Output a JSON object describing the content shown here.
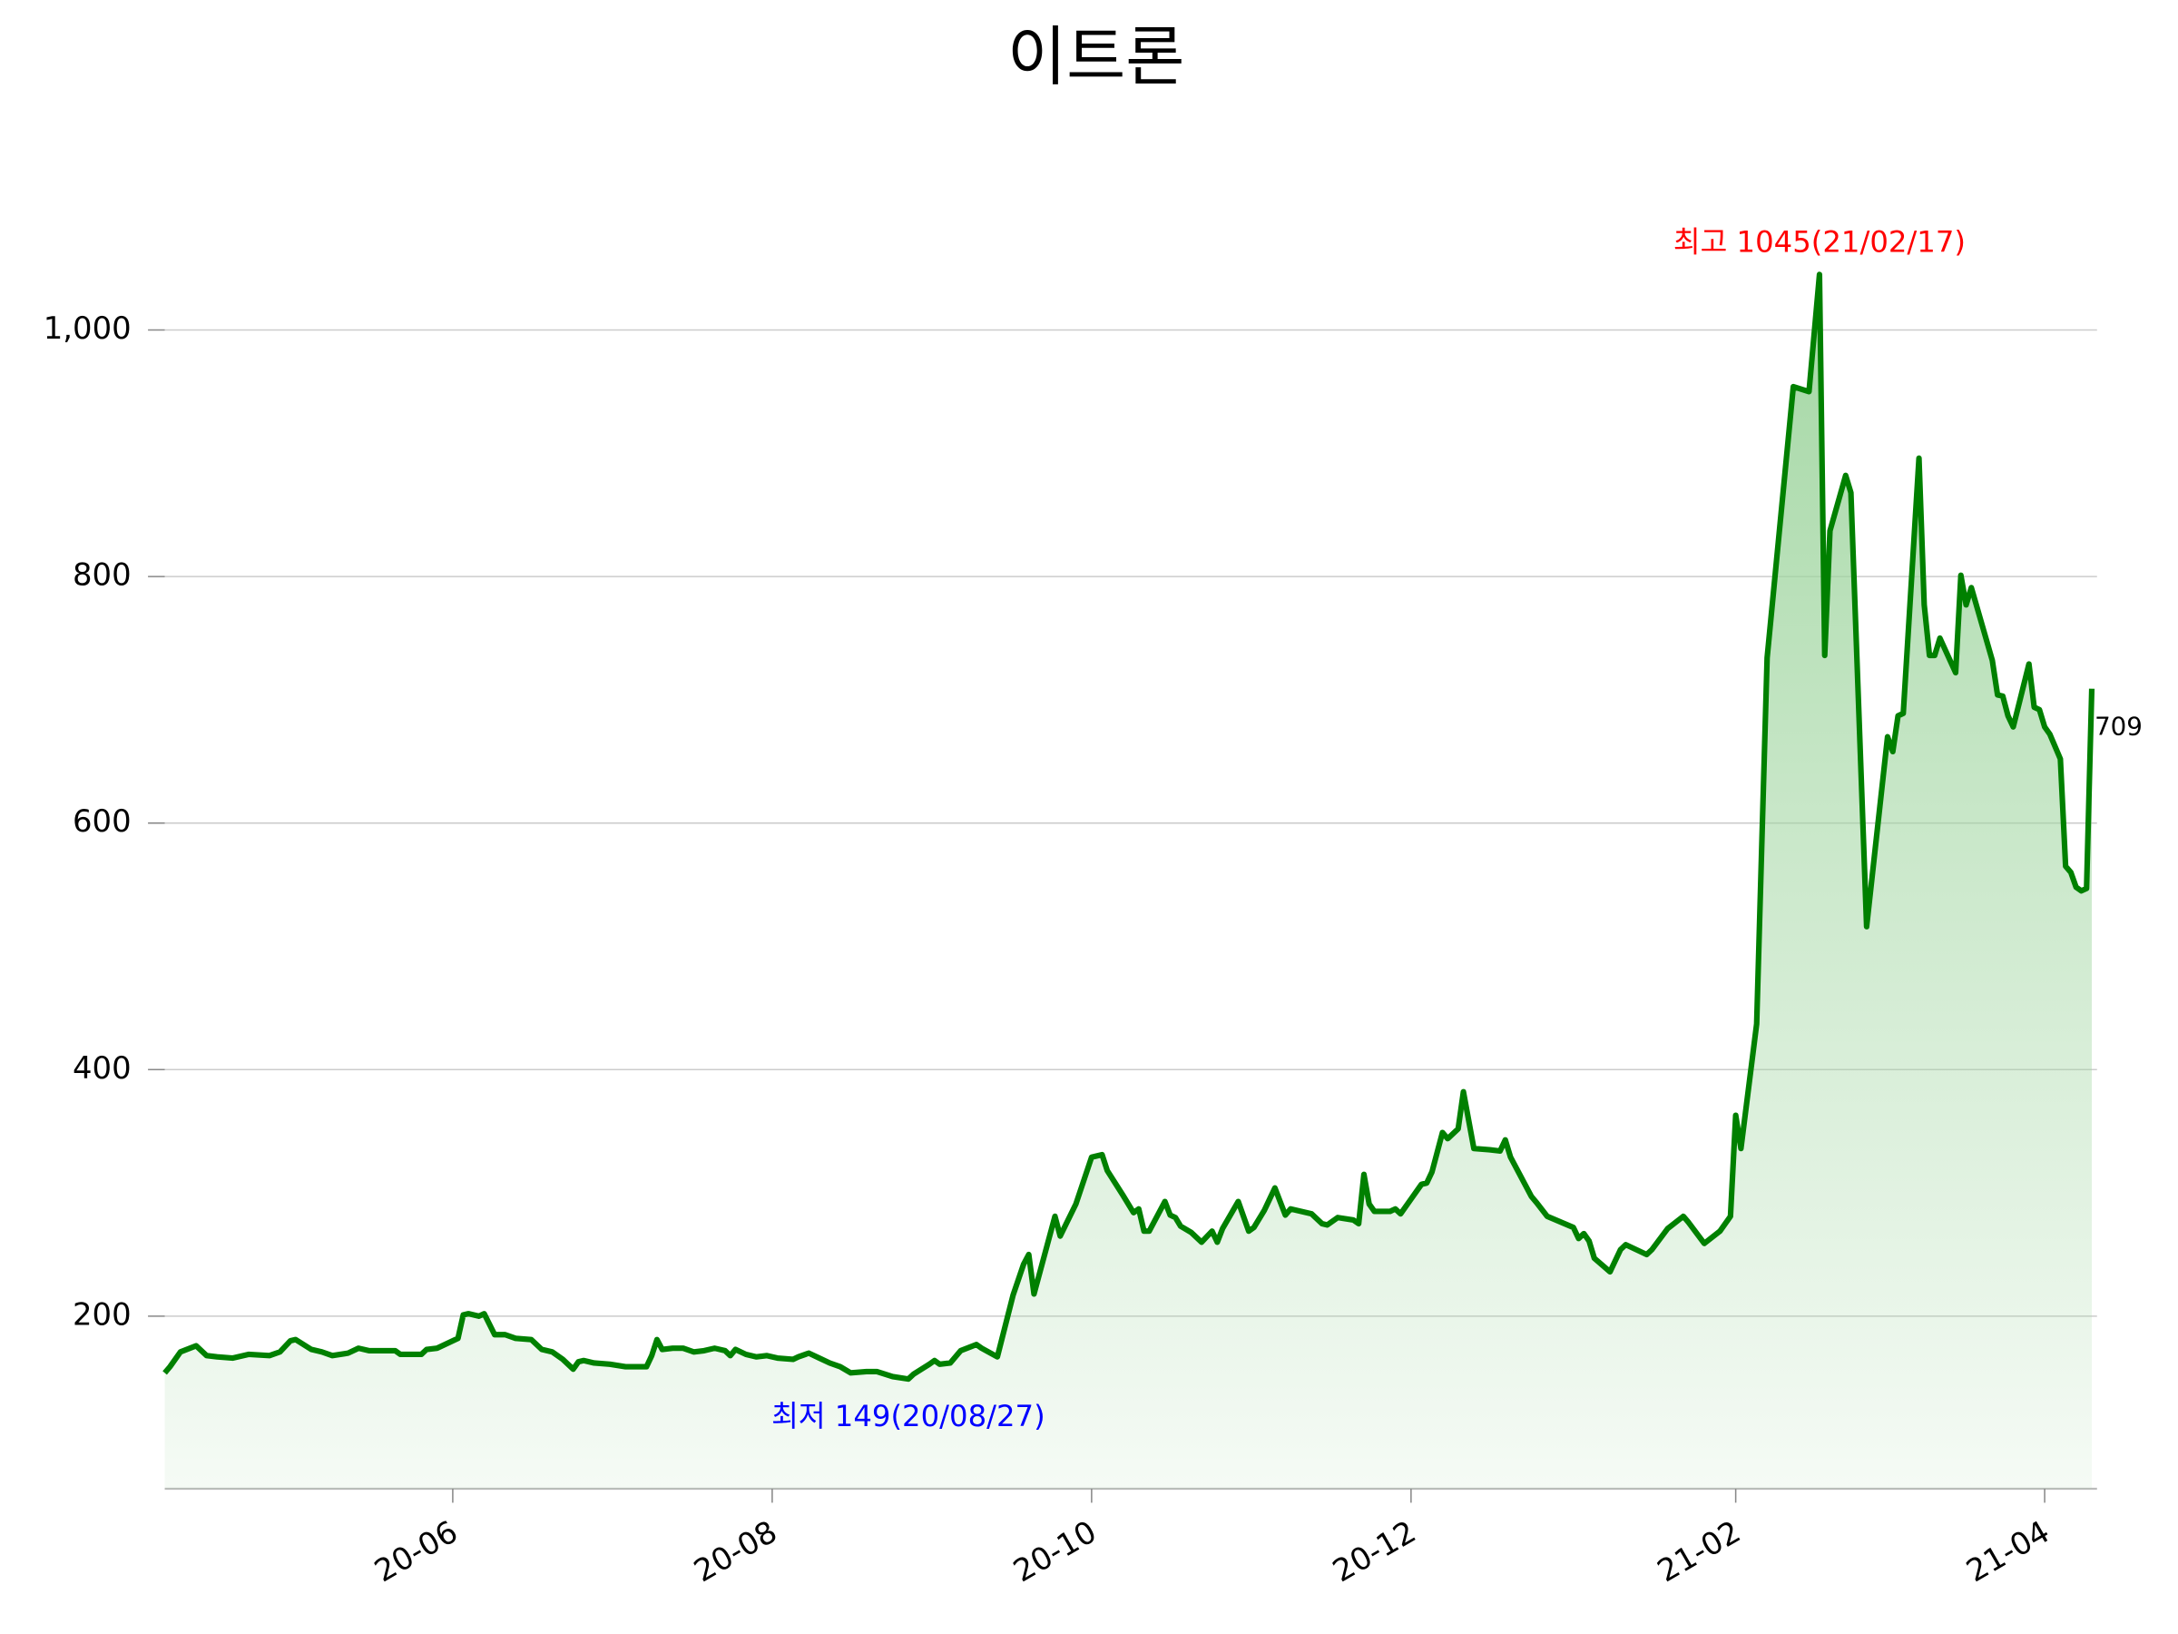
{
  "chart_data": {
    "type": "area",
    "title": "이트론",
    "color": "#008000",
    "fill": "#9fd59f",
    "xlim": [
      "20-04-07",
      "21-04-11"
    ],
    "xticks": [
      {
        "value": "20-06-01",
        "label": "20-06"
      },
      {
        "value": "20-08-01",
        "label": "20-08"
      },
      {
        "value": "20-10-01",
        "label": "20-10"
      },
      {
        "value": "20-12-01",
        "label": "20-12"
      },
      {
        "value": "21-02-01",
        "label": "21-02"
      },
      {
        "value": "21-04-01",
        "label": "21-04"
      }
    ],
    "ylim": [
      60,
      1100
    ],
    "yticks": [
      200,
      400,
      600,
      800,
      {
        "value": 1000,
        "label": "1,000"
      }
    ],
    "grid": true,
    "x": [
      "20-04-07",
      "20-04-08",
      "20-04-10",
      "20-04-13",
      "20-04-15",
      "20-04-17",
      "20-04-20",
      "20-04-23",
      "20-04-27",
      "20-04-29",
      "20-05-01",
      "20-05-02",
      "20-05-05",
      "20-05-07",
      "20-05-09",
      "20-05-12",
      "20-05-14",
      "20-05-16",
      "20-05-21",
      "20-05-22",
      "20-05-26",
      "20-05-27",
      "20-05-29",
      "20-06-02",
      "20-06-03",
      "20-06-04",
      "20-06-06",
      "20-06-07",
      "20-06-09",
      "20-06-11",
      "20-06-13",
      "20-06-16",
      "20-06-18",
      "20-06-20",
      "20-06-22",
      "20-06-24",
      "20-06-25",
      "20-06-26",
      "20-06-28",
      "20-07-01",
      "20-07-04",
      "20-07-08",
      "20-07-09",
      "20-07-10",
      "20-07-11",
      "20-07-13",
      "20-07-15",
      "20-07-17",
      "20-07-19",
      "20-07-21",
      "20-07-23",
      "20-07-24",
      "20-07-25",
      "20-07-27",
      "20-07-29",
      "20-07-31",
      "20-08-02",
      "20-08-05",
      "20-08-06",
      "20-08-08",
      "20-08-10",
      "20-08-12",
      "20-08-14",
      "20-08-16",
      "20-08-19",
      "20-08-21",
      "20-08-24",
      "20-08-27",
      "20-08-28",
      "20-08-31",
      "20-09-01",
      "20-09-02",
      "20-09-04",
      "20-09-06",
      "20-09-09",
      "20-09-10",
      "20-09-13",
      "20-09-16",
      "20-09-18",
      "20-09-19",
      "20-09-20",
      "20-09-24",
      "20-09-25",
      "20-09-28",
      "20-10-01",
      "20-10-03",
      "20-10-04",
      "20-10-07",
      "20-10-09",
      "20-10-10",
      "20-10-11",
      "20-10-12",
      "20-10-15",
      "20-10-16",
      "20-10-17",
      "20-10-18",
      "20-10-20",
      "20-10-22",
      "20-10-24",
      "20-10-25",
      "20-10-26",
      "20-10-29",
      "20-10-31",
      "20-11-01",
      "20-11-03",
      "20-11-05",
      "20-11-07",
      "20-11-08",
      "20-11-12",
      "20-11-14",
      "20-11-15",
      "20-11-17",
      "20-11-20",
      "20-11-21",
      "20-11-22",
      "20-11-23",
      "20-11-24",
      "20-11-27",
      "20-11-28",
      "20-11-29",
      "20-12-01",
      "20-12-03",
      "20-12-04",
      "20-12-05",
      "20-12-07",
      "20-12-08",
      "20-12-10",
      "20-12-11",
      "20-12-13",
      "20-12-16",
      "20-12-18",
      "20-12-19",
      "20-12-20",
      "20-12-24",
      "20-12-25",
      "20-12-27",
      "21-01-01",
      "21-01-02",
      "21-01-03",
      "21-01-04",
      "21-01-05",
      "21-01-08",
      "21-01-10",
      "21-01-11",
      "21-01-15",
      "21-01-16",
      "21-01-19",
      "21-01-22",
      "21-01-23",
      "21-01-26",
      "21-01-29",
      "21-01-31",
      "21-02-01",
      "21-02-02",
      "21-02-05",
      "21-02-07",
      "21-02-12",
      "21-02-15",
      "21-02-17",
      "21-02-18",
      "21-02-19",
      "21-02-22",
      "21-02-23",
      "21-02-26",
      "21-03-02",
      "21-03-03",
      "21-03-04",
      "21-03-05",
      "21-03-08",
      "21-03-09",
      "21-03-10",
      "21-03-11",
      "21-03-12",
      "21-03-15",
      "21-03-16",
      "21-03-17",
      "21-03-18",
      "21-03-22",
      "21-03-23",
      "21-03-24",
      "21-03-25",
      "21-03-26",
      "21-03-29",
      "21-03-30",
      "21-03-31",
      "21-04-01",
      "21-04-02",
      "21-04-04",
      "21-04-05",
      "21-04-06",
      "21-04-07",
      "21-04-08",
      "21-04-09",
      "21-04-10"
    ],
    "values": [
      154,
      159,
      171,
      176,
      168,
      167,
      166,
      169,
      168,
      171,
      180,
      181,
      173,
      171,
      168,
      170,
      174,
      172,
      172,
      169,
      169,
      173,
      174,
      182,
      201,
      202,
      200,
      202,
      185,
      185,
      182,
      181,
      173,
      171,
      165,
      157,
      163,
      164,
      162,
      161,
      159,
      159,
      168,
      181,
      173,
      174,
      174,
      171,
      172,
      174,
      172,
      168,
      173,
      169,
      167,
      168,
      166,
      165,
      167,
      170,
      166,
      162,
      159,
      154,
      155,
      155,
      151,
      149,
      153,
      161,
      164,
      161,
      162,
      172,
      177,
      174,
      167,
      217,
      242,
      250,
      218,
      281,
      265,
      291,
      329,
      331,
      318,
      298,
      284,
      287,
      269,
      269,
      293,
      282,
      280,
      273,
      268,
      260,
      269,
      260,
      271,
      293,
      269,
      272,
      286,
      304,
      282,
      287,
      283,
      275,
      274,
      280,
      278,
      275,
      315,
      291,
      285,
      285,
      287,
      283,
      295,
      307,
      308,
      317,
      349,
      344,
      352,
      382,
      336,
      335,
      334,
      343,
      329,
      297,
      292,
      281,
      272,
      263,
      267,
      261,
      247,
      236,
      254,
      258,
      250,
      254,
      271,
      281,
      276,
      259,
      269,
      281,
      363,
      336,
      437,
      734,
      954,
      950,
      1045,
      736,
      837,
      882,
      868,
      516,
      670,
      658,
      687,
      689,
      896,
      777,
      736,
      736,
      750,
      722,
      801,
      777,
      791,
      732,
      704,
      703,
      687,
      678,
      729,
      694,
      692,
      678,
      672,
      652,
      565,
      560,
      548,
      545,
      547,
      709
    ],
    "annotations": [
      {
        "text": "최고 1045(21/02/17)",
        "x": "21-02-17",
        "y": 1045,
        "color": "#ff0000"
      },
      {
        "text": "최저 149(20/08/27)",
        "x": "20-08-27",
        "y": 149,
        "color": "#0000ff"
      }
    ]
  }
}
